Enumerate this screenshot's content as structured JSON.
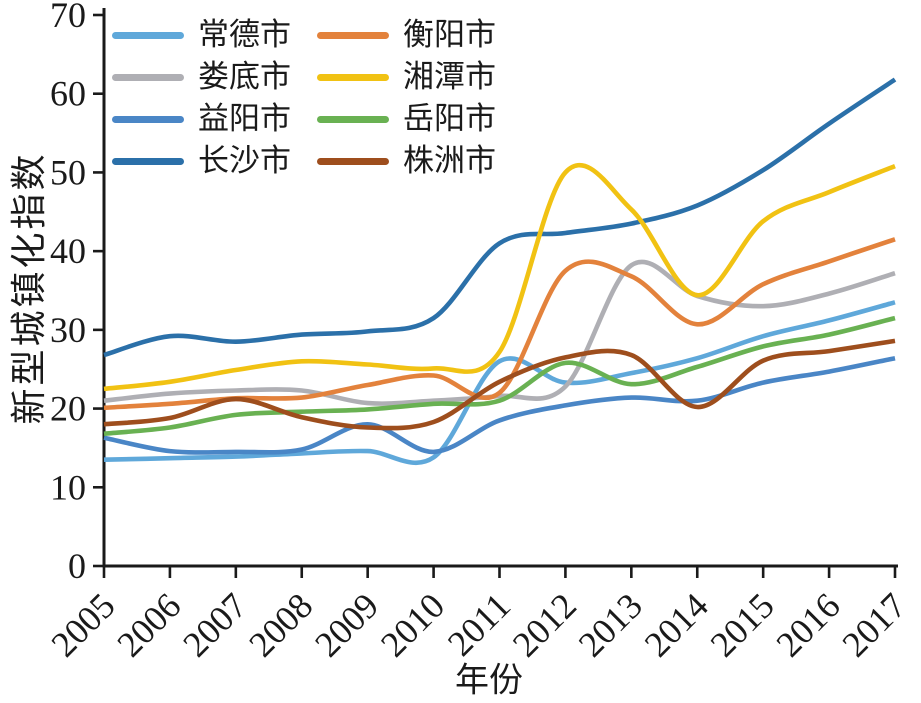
{
  "chart_data": {
    "type": "line",
    "title": "",
    "xlabel": "年份",
    "ylabel": "新型城镇化指数",
    "x": [
      2005,
      2006,
      2007,
      2008,
      2009,
      2010,
      2011,
      2012,
      2013,
      2014,
      2015,
      2016,
      2017
    ],
    "x_tick_labels": [
      "2005",
      "2006",
      "2007",
      "2008",
      "2009",
      "2010",
      "2011",
      "2012",
      "2013",
      "2014",
      "2015",
      "2016",
      "2017"
    ],
    "ylim": [
      0,
      70
    ],
    "y_ticks": [
      0,
      10,
      20,
      30,
      40,
      50,
      60,
      70
    ],
    "grid": false,
    "legend_position": "top-left-inside",
    "legend_columns": 2,
    "axis_color": "#1a1a1a",
    "series": [
      {
        "name": "常德市",
        "color": "#5FA8DA",
        "values": [
          13.5,
          13.7,
          13.9,
          14.3,
          14.6,
          13.8,
          26.0,
          23.3,
          24.5,
          26.4,
          29.2,
          31.2,
          33.5
        ]
      },
      {
        "name": "娄底市",
        "color": "#AFAFB4",
        "values": [
          21.0,
          21.9,
          22.3,
          22.3,
          20.7,
          21.0,
          21.6,
          22.8,
          38.2,
          34.3,
          33.0,
          34.6,
          37.2
        ]
      },
      {
        "name": "益阳市",
        "color": "#4A86C6",
        "values": [
          16.3,
          14.6,
          14.5,
          14.8,
          18.0,
          14.5,
          18.5,
          20.4,
          21.4,
          21.0,
          23.3,
          24.7,
          26.4
        ]
      },
      {
        "name": "长沙市",
        "color": "#2B70A9",
        "values": [
          26.8,
          29.2,
          28.5,
          29.4,
          29.8,
          31.5,
          41.0,
          42.3,
          43.5,
          45.8,
          50.3,
          56.2,
          61.8
        ]
      },
      {
        "name": "衡阳市",
        "color": "#E3823C",
        "values": [
          20.1,
          20.6,
          21.3,
          21.4,
          23.0,
          24.2,
          22.0,
          37.5,
          36.8,
          30.7,
          35.8,
          38.7,
          41.5
        ]
      },
      {
        "name": "湘潭市",
        "color": "#F1C213",
        "values": [
          22.5,
          23.4,
          24.9,
          26.0,
          25.6,
          25.1,
          27.2,
          50.0,
          45.3,
          34.4,
          43.8,
          47.5,
          50.8
        ]
      },
      {
        "name": "岳阳市",
        "color": "#69B152",
        "values": [
          16.8,
          17.6,
          19.2,
          19.6,
          19.9,
          20.6,
          21.0,
          25.8,
          23.1,
          25.3,
          27.9,
          29.4,
          31.5
        ]
      },
      {
        "name": "株洲市",
        "color": "#9E4E1D",
        "values": [
          18.0,
          18.8,
          21.2,
          18.9,
          17.6,
          18.3,
          23.4,
          26.5,
          26.8,
          20.2,
          26.1,
          27.3,
          28.6
        ]
      }
    ]
  }
}
